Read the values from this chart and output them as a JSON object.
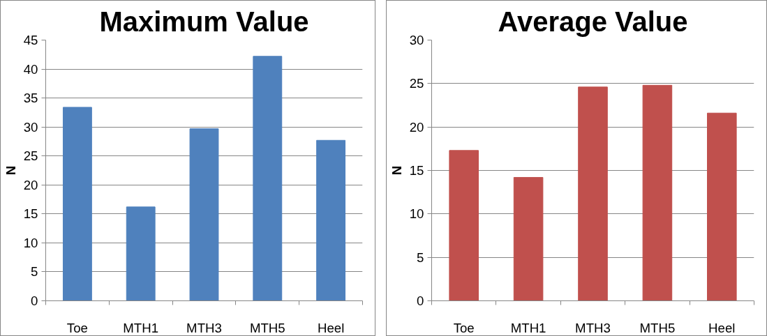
{
  "chart_data": [
    {
      "type": "bar",
      "title": "Maximum Value",
      "ylabel": "N",
      "categories": [
        "Toe",
        "MTH1",
        "MTH3",
        "MTH5",
        "Heel"
      ],
      "values": [
        33.4,
        16.2,
        29.7,
        42.2,
        27.7
      ],
      "color": "#4f81bd",
      "ylim": [
        0,
        45
      ],
      "yticks": [
        0,
        5,
        10,
        15,
        20,
        25,
        30,
        35,
        40,
        45
      ],
      "grid": "y"
    },
    {
      "type": "bar",
      "title": "Average Value",
      "ylabel": "N",
      "categories": [
        "Toe",
        "MTH1",
        "MTH3",
        "MTH5",
        "Heel"
      ],
      "values": [
        17.3,
        14.2,
        24.6,
        24.8,
        21.6
      ],
      "color": "#c0504d",
      "ylim": [
        0,
        30
      ],
      "yticks": [
        0,
        5,
        10,
        15,
        20,
        25,
        30
      ],
      "grid": "y"
    }
  ]
}
